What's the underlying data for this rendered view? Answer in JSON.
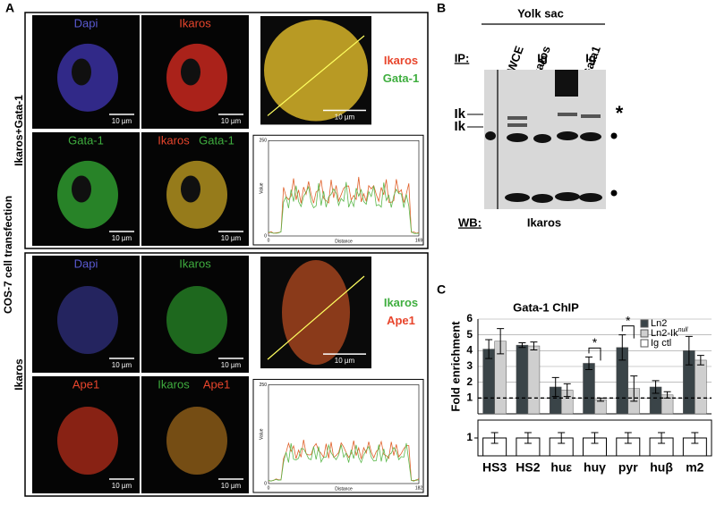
{
  "panel_a": {
    "label": "A",
    "side_label": "COS-7 cell transfection",
    "scale_bar": "10 µm",
    "blocks": [
      {
        "row_label": "Ikaros+Gata-1",
        "tiles": [
          {
            "labels": [
              {
                "text": "Dapi",
                "color": "#5a5ad2"
              }
            ],
            "tint": "#3a30a0"
          },
          {
            "labels": [
              {
                "text": "Ikaros",
                "color": "#e8452c"
              }
            ],
            "tint": "#c8281e"
          },
          {
            "labels": [
              {
                "text": "Gata-1",
                "color": "#3fae3f"
              }
            ],
            "tint": "#2f9a2f"
          },
          {
            "labels": [
              {
                "text": "Ikaros",
                "color": "#e8452c"
              },
              {
                "text": "Gata-1",
                "color": "#3fae3f"
              }
            ],
            "tint": "#b09020"
          }
        ],
        "merge_labels": [
          {
            "text": "Ikaros",
            "color": "#e8452c"
          },
          {
            "text": "Gata-1",
            "color": "#3fae3f"
          }
        ],
        "merge_tint": "#b89a24",
        "profile": {
          "y_label": "Value",
          "x_label": "Distance",
          "xlim": [
            0,
            169
          ],
          "ylim": [
            0,
            250
          ]
        }
      },
      {
        "row_label": "Ikaros",
        "tiles": [
          {
            "labels": [
              {
                "text": "Dapi",
                "color": "#5a5ad2"
              }
            ],
            "tint": "#2a2a70"
          },
          {
            "labels": [
              {
                "text": "Ikaros",
                "color": "#3fae3f"
              }
            ],
            "tint": "#237a23"
          },
          {
            "labels": [
              {
                "text": "Ape1",
                "color": "#e8452c"
              }
            ],
            "tint": "#a02818"
          },
          {
            "labels": [
              {
                "text": "Ikaros",
                "color": "#3fae3f"
              },
              {
                "text": "Ape1",
                "color": "#e8452c"
              }
            ],
            "tint": "#8a5a18"
          }
        ],
        "merge_labels": [
          {
            "text": "Ikaros",
            "color": "#3fae3f"
          },
          {
            "text": "Ape1",
            "color": "#e8452c"
          }
        ],
        "merge_tint": "#8a3a1a",
        "profile": {
          "y_label": "Value",
          "x_label": "Distance",
          "xlim": [
            0,
            182
          ],
          "ylim": [
            0,
            250
          ]
        }
      }
    ]
  },
  "panel_b": {
    "label": "B",
    "tissue": "Yolk sac",
    "ip_label": "IP:",
    "lanes": [
      "WCE",
      "Ikaros",
      "Ig",
      "Gata1",
      "Ig"
    ],
    "band_labels": [
      "Ik",
      "Ik"
    ],
    "star": "*",
    "wb_label": "WB:",
    "wb_antibody": "Ikaros"
  },
  "chart_data": {
    "type": "bar",
    "panel_label": "C",
    "title": "Gata-1 ChIP",
    "y_label": "Fold enrichment",
    "categories": [
      "HS3",
      "HS2",
      "huε",
      "huγ",
      "pyr",
      "huβ",
      "m2"
    ],
    "series": [
      {
        "name": "Ln2",
        "color": "#3a4448",
        "values": [
          4.1,
          4.35,
          1.7,
          3.2,
          4.2,
          1.7,
          4.0
        ],
        "errors": [
          0.6,
          0.15,
          0.6,
          0.4,
          0.8,
          0.4,
          0.9
        ]
      },
      {
        "name": "Ln2-Ik",
        "name_superscript": "null",
        "color": "#cfcfcf",
        "values": [
          4.6,
          4.3,
          1.5,
          0.9,
          1.6,
          1.2,
          3.4
        ],
        "errors": [
          0.8,
          0.25,
          0.4,
          0.1,
          0.8,
          0.2,
          0.3
        ]
      },
      {
        "name": "Ig ctl",
        "color": "#ffffff",
        "axis": "y2",
        "values": [
          1,
          1,
          1,
          1,
          1,
          1,
          1
        ],
        "errors": [
          0.3,
          0.3,
          0.3,
          0.3,
          0.3,
          0.3,
          0.3
        ]
      }
    ],
    "ylim": [
      0,
      6
    ],
    "yticks": [
      1,
      2,
      3,
      4,
      5,
      6
    ],
    "y2lim": [
      0,
      2
    ],
    "y2ticks": [
      1
    ],
    "grid": true,
    "reference_line": 1,
    "legend": "upper right",
    "annotations": [
      {
        "text": "*",
        "category": "huγ"
      },
      {
        "text": "*",
        "category": "pyr"
      }
    ]
  }
}
